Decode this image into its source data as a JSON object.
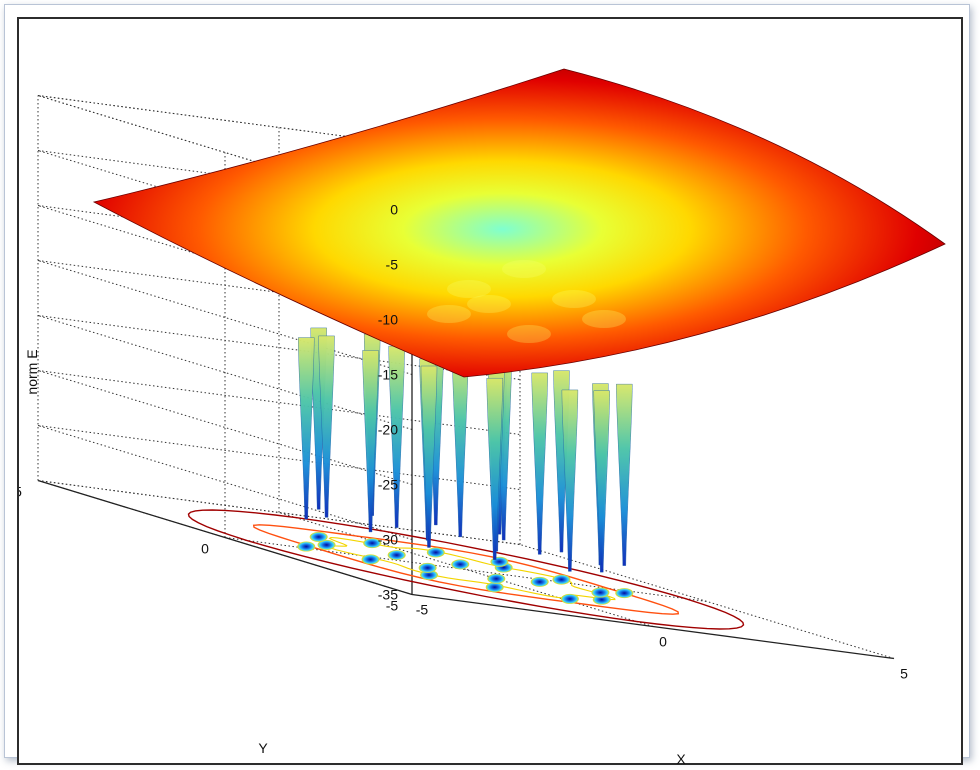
{
  "chart_data": {
    "type": "surface",
    "xlabel": "X",
    "ylabel": "Y",
    "zlabel": "norm E",
    "xlim": [
      -5,
      5
    ],
    "ylim": [
      -5,
      5
    ],
    "zlim": [
      -35,
      0
    ],
    "x_ticks": [
      "-5",
      "0",
      "5"
    ],
    "y_ticks": [
      "-5",
      "0",
      "5"
    ],
    "z_ticks": [
      "0",
      "-5",
      "-10",
      "-15",
      "-20",
      "-25",
      "-30",
      "-35"
    ],
    "grid": true,
    "colormap": "jet",
    "wells": [
      [
        -1.5,
        -1.2
      ],
      [
        -0.8,
        -1.6
      ],
      [
        0.2,
        -1.8
      ],
      [
        1.0,
        -1.4
      ],
      [
        1.6,
        -0.6
      ],
      [
        -1.7,
        -0.3
      ],
      [
        -0.9,
        -0.4
      ],
      [
        0.0,
        -0.6
      ],
      [
        0.9,
        -0.3
      ],
      [
        1.7,
        0.3
      ],
      [
        -1.6,
        0.7
      ],
      [
        -0.6,
        0.6
      ],
      [
        0.3,
        0.5
      ],
      [
        1.2,
        0.8
      ],
      [
        -1.1,
        1.5
      ],
      [
        -0.2,
        1.6
      ],
      [
        0.7,
        1.5
      ],
      [
        1.6,
        1.4
      ],
      [
        -2.3,
        0.2
      ],
      [
        2.2,
        -0.3
      ]
    ],
    "contour_levels": [
      "inner",
      "outer"
    ]
  }
}
